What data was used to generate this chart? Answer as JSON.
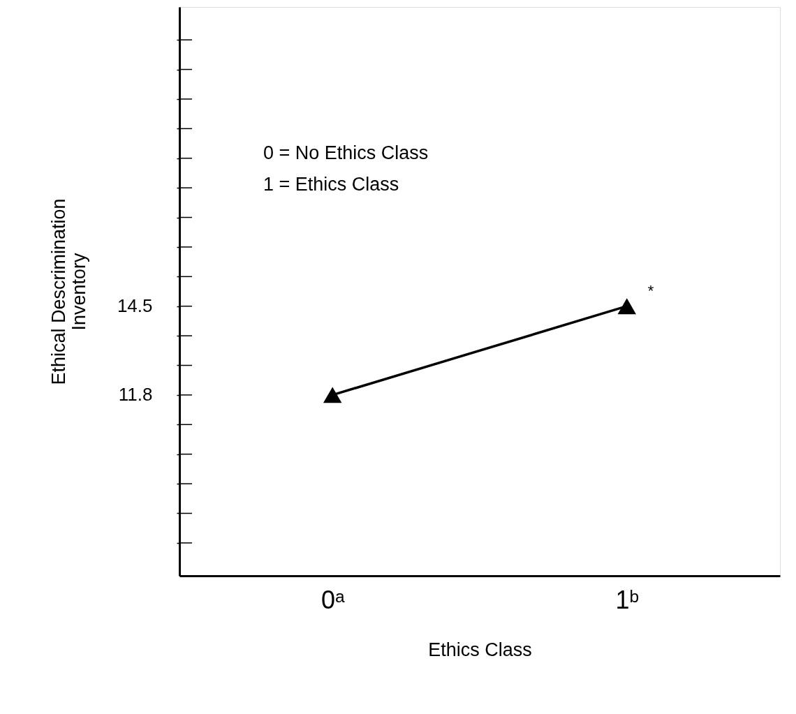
{
  "chart_data": {
    "type": "line",
    "xlabel": "Ethics Class",
    "ylabel": "Ethical Descrimination\nInventory",
    "categories": [
      "0ᵃ",
      "1ᵇ"
    ],
    "series": [
      {
        "color": "#000000",
        "values": [
          11.8,
          14.5
        ]
      }
    ],
    "marker": "triangle",
    "line_style": "solid",
    "ylim": [
      6.3,
      23.6
    ],
    "yticks": [
      {
        "value": 7.3,
        "label": null
      },
      {
        "value": 8.2,
        "label": null
      },
      {
        "value": 9.1,
        "label": null
      },
      {
        "value": 10.0,
        "label": null
      },
      {
        "value": 10.9,
        "label": null
      },
      11.8,
      {
        "value": 12.7,
        "label": null
      },
      {
        "value": 13.6,
        "label": null
      },
      14.5,
      {
        "value": 15.4,
        "label": null
      },
      {
        "value": 16.3,
        "label": null
      },
      {
        "value": 17.2,
        "label": null
      },
      {
        "value": 18.1,
        "label": null
      },
      {
        "value": 19.0,
        "label": null
      },
      {
        "value": 19.9,
        "label": null
      },
      {
        "value": 20.8,
        "label": null
      },
      {
        "value": 21.7,
        "label": null
      },
      {
        "value": 22.6,
        "label": null
      }
    ],
    "grid": false,
    "annotations": [
      "0 = No Ethics Class",
      "1 = Ethics Class",
      {
        "text": "*",
        "x": "1ᵇ",
        "y": 14.5
      }
    ]
  }
}
